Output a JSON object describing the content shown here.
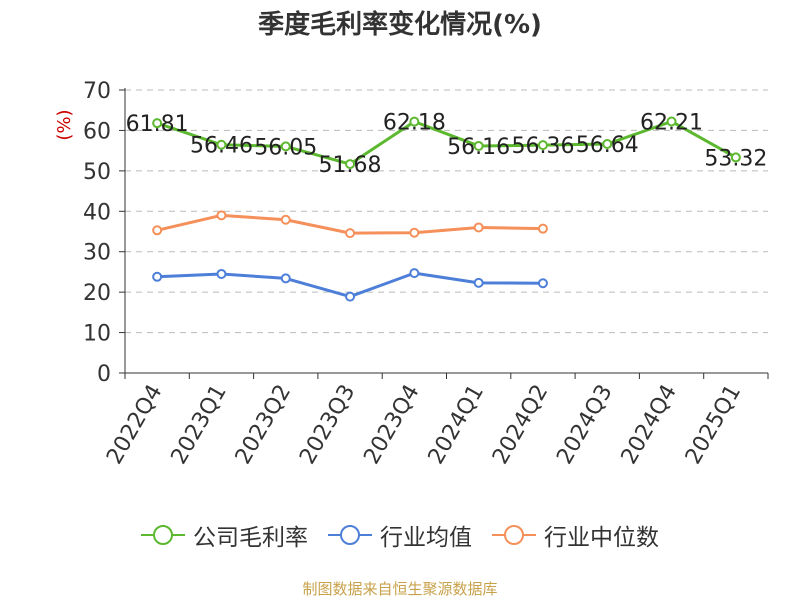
{
  "chart_data": {
    "type": "line",
    "title": "季度毛利率变化情况(%)",
    "ylabel": "(%)",
    "xlabel": "",
    "ylim": [
      0,
      70
    ],
    "yticks": [
      0,
      10,
      20,
      30,
      40,
      50,
      60,
      70
    ],
    "grid": "horizontal-dashed",
    "legend_position": "bottom",
    "categories": [
      "2022Q4",
      "2023Q1",
      "2023Q2",
      "2023Q3",
      "2023Q4",
      "2024Q1",
      "2024Q2",
      "2024Q3",
      "2024Q4",
      "2025Q1"
    ],
    "series": [
      {
        "name": "公司毛利率",
        "color": "#5cb82e",
        "show_labels": true,
        "values": [
          61.81,
          56.46,
          56.05,
          51.68,
          62.18,
          56.16,
          56.36,
          56.64,
          62.21,
          53.32
        ]
      },
      {
        "name": "行业均值",
        "color": "#4d7fd8",
        "show_labels": false,
        "values": [
          23.8,
          24.5,
          23.4,
          18.9,
          24.7,
          22.3,
          22.2,
          null,
          null,
          null
        ]
      },
      {
        "name": "行业中位数",
        "color": "#f5905a",
        "show_labels": false,
        "values": [
          35.3,
          39.0,
          37.9,
          34.6,
          34.7,
          36.0,
          35.7,
          null,
          null,
          null
        ]
      }
    ]
  },
  "source_note": "制图数据来自恒生聚源数据库"
}
